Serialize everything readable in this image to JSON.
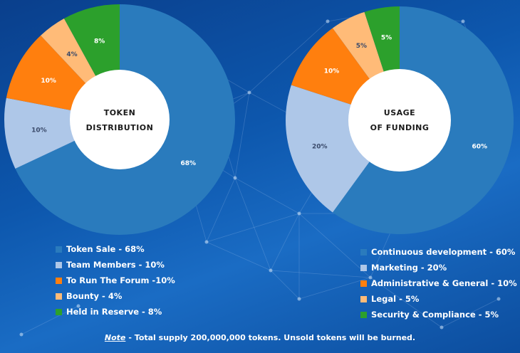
{
  "chart_data": [
    {
      "type": "pie",
      "title": "TOKEN DISTRIBUTION",
      "title_lines": [
        "TOKEN",
        "DISTRIBUTION"
      ],
      "slices": [
        {
          "label": "Token Sale",
          "value": 68,
          "value_label": "68%",
          "legend": "Token Sale - 68%",
          "color": "#2a7bbd"
        },
        {
          "label": "Team Members",
          "value": 10,
          "value_label": "10%",
          "legend": "Team Members - 10%",
          "color": "#aec7e8"
        },
        {
          "label": "To Run The Forum",
          "value": 10,
          "value_label": "10%",
          "legend": "To Run The Forum -10%",
          "color": "#ff7f0e"
        },
        {
          "label": "Bounty",
          "value": 4,
          "value_label": "4%",
          "legend": "Bounty - 4%",
          "color": "#ffbb78"
        },
        {
          "label": "Held in Reserve",
          "value": 8,
          "value_label": "8%",
          "legend": "Held in Reserve - 8%",
          "color": "#2ca02c"
        }
      ]
    },
    {
      "type": "pie",
      "title": "USAGE OF FUNDING",
      "title_lines": [
        "USAGE",
        "OF FUNDING"
      ],
      "slices": [
        {
          "label": "Continuous development",
          "value": 60,
          "value_label": "60%",
          "legend": "Continuous development - 60%",
          "color": "#2a7bbd"
        },
        {
          "label": "Marketing",
          "value": 20,
          "value_label": "20%",
          "legend": "Marketing - 20%",
          "color": "#aec7e8"
        },
        {
          "label": "Administrative & General",
          "value": 10,
          "value_label": "10%",
          "legend": "Administrative & General - 10%",
          "color": "#ff7f0e"
        },
        {
          "label": "Legal",
          "value": 5,
          "value_label": "5%",
          "legend": "Legal - 5%",
          "color": "#ffbb78"
        },
        {
          "label": "Security & Compliance",
          "value": 5,
          "value_label": "5%",
          "legend": "Security & Compliance - 5%",
          "color": "#2ca02c"
        }
      ]
    }
  ],
  "note": {
    "label": "Note",
    "text": "- Total supply 200,000,000 tokens. Unsold tokens will be burned."
  }
}
